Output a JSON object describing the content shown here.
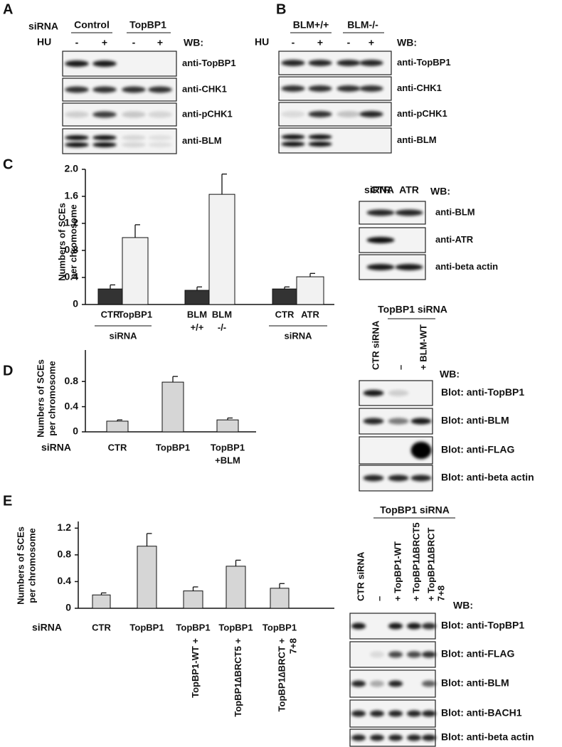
{
  "panel_labels": [
    "A",
    "B",
    "C",
    "D",
    "E"
  ],
  "blot_a": {
    "row_label": "siRNA",
    "groups": [
      "Control",
      "TopBP1"
    ],
    "treatment_label": "HU",
    "lanes": [
      "-",
      "+",
      "-",
      "+"
    ],
    "wb": "WB:",
    "rows": [
      "anti-TopBP1",
      "anti-CHK1",
      "anti-pCHK1",
      "anti-BLM"
    ]
  },
  "blot_b": {
    "groups": [
      "BLM+/+",
      "BLM-/-"
    ],
    "treatment_label": "HU",
    "lanes": [
      "-",
      "+",
      "-",
      "+"
    ],
    "wb": "WB:",
    "rows": [
      "anti-TopBP1",
      "anti-CHK1",
      "anti-pCHK1",
      "anti-BLM"
    ]
  },
  "blot_c": {
    "row_label": "siRNA",
    "lanes": [
      "CTR",
      "ATR"
    ],
    "wb": "WB:",
    "rows": [
      "anti-BLM",
      "anti-ATR",
      "anti-beta actin"
    ]
  },
  "blot_d": {
    "group": "TopBP1 siRNA",
    "lanes": [
      [
        "CTR siRNA"
      ],
      [
        "–"
      ],
      [
        "+ BLM-WT"
      ]
    ],
    "wb": "WB:",
    "rows": [
      "Blot: anti-TopBP1",
      "Blot: anti-BLM",
      "Blot: anti-FLAG",
      "Blot: anti-beta actin"
    ]
  },
  "blot_e": {
    "group": "TopBP1 siRNA",
    "lanes": [
      [
        "CTR siRNA"
      ],
      [
        "–"
      ],
      [
        "+ TopBP1-WT"
      ],
      [
        "+ TopBP1∆BRCT5"
      ],
      [
        "+ TopBP1∆BRCT",
        "7+8"
      ]
    ],
    "wb": "WB:",
    "rows": [
      "Blot: anti-TopBP1",
      "Blot: anti-FLAG",
      "Blot: anti-BLM",
      "Blot: anti-BACH1",
      "Blot: anti-beta actin"
    ]
  },
  "chart_data": [
    {
      "type": "bar",
      "y_label": [
        "Numbers of SCEs",
        "per chromosome"
      ],
      "categories": [
        [
          "CTR"
        ],
        [
          "TopBP1"
        ],
        [
          "BLM",
          "+/+"
        ],
        [
          "BLM",
          "-/-"
        ],
        [
          "CTR"
        ],
        [
          "ATR"
        ]
      ],
      "group_labels": [
        "siRNA",
        "siRNA"
      ],
      "values": [
        0.23,
        0.99,
        0.21,
        1.63,
        0.23,
        0.41
      ],
      "errors": [
        0.06,
        0.19,
        0.05,
        0.3,
        0.03,
        0.05
      ],
      "colors": [
        "#333333",
        "#f2f2f2",
        "#333333",
        "#f2f2f2",
        "#333333",
        "#f2f2f2"
      ],
      "ylim": [
        0,
        2
      ],
      "yticks": [
        0,
        0.4,
        0.8,
        1.2,
        1.6,
        {
          "value": 2,
          "label": "2.0"
        }
      ]
    },
    {
      "type": "bar",
      "y_label": [
        "Numbers of SCEs",
        "per chromosome"
      ],
      "row_label": "siRNA",
      "categories": [
        [
          "CTR"
        ],
        [
          "TopBP1"
        ],
        [
          "TopBP1",
          "+BLM"
        ]
      ],
      "values": [
        0.17,
        0.79,
        0.19
      ],
      "errors": [
        0.02,
        0.09,
        0.03
      ],
      "colors": [
        "#d6d6d6",
        "#d6d6d6",
        "#d6d6d6"
      ],
      "ylim": [
        0,
        1.3
      ],
      "yticks": [
        0,
        0.4,
        0.8
      ]
    },
    {
      "type": "bar",
      "y_label": [
        "Numbers of SCEs",
        "per chromosome"
      ],
      "row_label": "siRNA",
      "categories": [
        [
          "CTR"
        ],
        [
          "TopBP1"
        ],
        [
          "TopBP1",
          "TopBP1-WT +"
        ],
        [
          "TopBP1",
          "TopBP1∆BRCT5 +"
        ],
        [
          "TopBP1",
          "TopBP1∆BRCT +",
          "7+8"
        ]
      ],
      "values": [
        0.2,
        0.93,
        0.26,
        0.63,
        0.3
      ],
      "errors": [
        0.03,
        0.19,
        0.06,
        0.09,
        0.07
      ],
      "colors": [
        "#d6d6d6",
        "#d6d6d6",
        "#d6d6d6",
        "#d6d6d6",
        "#d6d6d6"
      ],
      "ylim": [
        0,
        1.3
      ],
      "yticks": [
        0,
        0.4,
        0.8,
        1.2
      ]
    }
  ]
}
